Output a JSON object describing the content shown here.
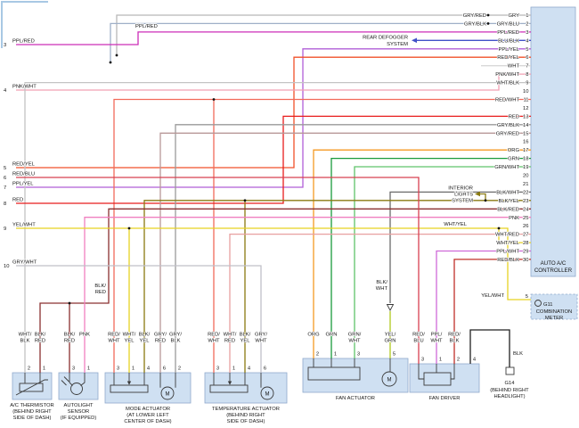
{
  "wire_colors": {
    "gry": "#b8b8b8",
    "gry_blu": "#9fb0c8",
    "ppl_red": "#cc2db8",
    "blu_blk": "#4050c8",
    "ppl_yel": "#b05fd8",
    "red_yel": "#f0502a",
    "wht": "#d8d8d8",
    "pnk_wht": "#f2a0b4",
    "wht_blk": "#c4c4c4",
    "red_wht": "#f26a5a",
    "red": "#e81c1c",
    "gry_blk": "#9a9a9a",
    "gry_red": "#b89898",
    "org": "#f59a23",
    "grn": "#199a3c",
    "grn_wht": "#5fc46a",
    "blk_wht": "#6a6a6a",
    "yel_grn": "#b0c81e",
    "blk_yel": "#8a7a10",
    "blk_red": "#8a3030",
    "pnk": "#f080c0",
    "yel_wht": "#e6d222",
    "wht_red": "#e8a0a0",
    "wht_yel": "#d8c878",
    "ppl_wht": "#cf6ad8",
    "red_blk": "#c03028",
    "red_blu": "#d84050",
    "gry_wht": "#c0c0c8",
    "blk": "#202020"
  },
  "frame_color": "#a8c8e4",
  "top_label": "PPL/RED",
  "controller": {
    "title": [
      "AUTO A/C",
      "CONTROLLER"
    ],
    "pins": [
      {
        "n": "1",
        "pre": "GRY/RED",
        "label": "GRY"
      },
      {
        "n": "2",
        "pre": "GRY/BLK",
        "label": "GRY/BLU"
      },
      {
        "n": "3",
        "label": "PPL/RED"
      },
      {
        "n": "4",
        "label": "BLU/BLK"
      },
      {
        "n": "5",
        "label": "PPL/YEL"
      },
      {
        "n": "6",
        "label": "RED/YEL"
      },
      {
        "n": "7",
        "label": "WHT"
      },
      {
        "n": "8",
        "label": "PNK/WHT"
      },
      {
        "n": "9",
        "label": "WHT/BLK"
      },
      {
        "n": "10",
        "label": ""
      },
      {
        "n": "11",
        "label": "RED/WHT"
      },
      {
        "n": "12",
        "label": ""
      },
      {
        "n": "13",
        "label": "RED"
      },
      {
        "n": "14",
        "label": "GRY/BLK"
      },
      {
        "n": "15",
        "label": "GRY/RED"
      },
      {
        "n": "16",
        "label": ""
      },
      {
        "n": "17",
        "label": "ORG"
      },
      {
        "n": "18",
        "label": "GRN"
      },
      {
        "n": "19",
        "label": "GRN/WHT"
      },
      {
        "n": "20",
        "label": ""
      },
      {
        "n": "21",
        "label": ""
      },
      {
        "n": "22",
        "label": "BLK/WHT"
      },
      {
        "n": "23",
        "label": "BLK/YEL"
      },
      {
        "n": "24",
        "label": "BLK/RED"
      },
      {
        "n": "25",
        "label": "PNK"
      },
      {
        "n": "26",
        "label": ""
      },
      {
        "n": "27",
        "label": "WHT/RED"
      },
      {
        "n": "28",
        "label": "WHT/YEL"
      },
      {
        "n": "29",
        "label": "PPL/WHT"
      },
      {
        "n": "30",
        "label": "RED/BLK"
      }
    ]
  },
  "left_connector": {
    "pins": [
      {
        "n": "3",
        "label": "PPL/RED"
      },
      {
        "n": "4",
        "label": "PNK/WHT"
      },
      {
        "n": "5",
        "label": "RED/YEL"
      },
      {
        "n": "6",
        "label": "RED/BLU"
      },
      {
        "n": "7",
        "label": "PPL/YEL"
      },
      {
        "n": "8",
        "label": "RED"
      },
      {
        "n": "9",
        "label": "YEL/WHT"
      },
      {
        "n": "10",
        "label": "GRY/WHT"
      }
    ]
  },
  "systems": {
    "rear_defogger": [
      "REAR DEFOGGER",
      "SYSTEM"
    ],
    "interior_lights": [
      "INTERIOR",
      "LIGHTS",
      "SYSTEM"
    ]
  },
  "inline_labels": {
    "blk_red": [
      "BLK/",
      "RED"
    ],
    "blk_wht": [
      "BLK/",
      "WHT"
    ],
    "wht_yel": "WHT/YEL",
    "yel_wht": "YEL/WHT"
  },
  "components": {
    "thermistor": {
      "caption": [
        "A/C THERMISTOR",
        "(BEHIND RIGHT",
        "SIDE OF DASH)"
      ],
      "wires": [
        {
          "l1": "WHT/",
          "l2": "BLK",
          "pin": "2"
        },
        {
          "l1": "BLK/",
          "l2": "RED",
          "pin": "1"
        }
      ]
    },
    "autolight": {
      "caption": [
        "AUTOLIGHT",
        "SENSOR",
        "(IF EQUIPPED)"
      ],
      "wires": [
        {
          "l1": "BLK/",
          "l2": "RED",
          "pin": "3"
        },
        {
          "l1": "PNK",
          "l2": "",
          "pin": "1"
        }
      ]
    },
    "mode": {
      "caption": [
        "MODE ACTUATOR",
        "(AT LOWER LEFT",
        "CENTER OF DASH)"
      ],
      "wires": [
        {
          "l1": "RED/",
          "l2": "WHT",
          "pin": "3"
        },
        {
          "l1": "WHT/",
          "l2": "YEL",
          "pin": "1"
        },
        {
          "l1": "BLK/",
          "l2": "YEL",
          "pin": "4"
        },
        {
          "l1": "GRY/",
          "l2": "RED",
          "pin": "6"
        },
        {
          "l1": "GRY/",
          "l2": "BLK",
          "pin": "2"
        }
      ]
    },
    "temp": {
      "caption": [
        "TEMPERATURE ACTUATOR",
        "(BEHIND RIGHT",
        "SIDE OF DASH)"
      ],
      "wires": [
        {
          "l1": "RED/",
          "l2": "WHT",
          "pin": "3"
        },
        {
          "l1": "WHT/",
          "l2": "RED",
          "pin": "1"
        },
        {
          "l1": "BLK/",
          "l2": "YEL",
          "pin": "4"
        },
        {
          "l1": "GRY/",
          "l2": "WHT",
          "pin": "6"
        }
      ]
    },
    "fan_actuator": {
      "caption": [
        "FAN ACTUATOR"
      ],
      "wires": [
        {
          "l1": "ORG",
          "l2": "",
          "pin": "2"
        },
        {
          "l1": "GRN",
          "l2": "",
          "pin": "1"
        },
        {
          "l1": "GRN/",
          "l2": "WHT",
          "pin": "3"
        },
        {
          "l1": "YEL/",
          "l2": "GRN",
          "pin": "5"
        }
      ]
    },
    "fan_driver": {
      "caption": [
        "FAN DRIVER"
      ],
      "wires": [
        {
          "l1": "RED/",
          "l2": "BLU",
          "pin": "3"
        },
        {
          "l1": "PPL/",
          "l2": "WHT",
          "pin": "1"
        },
        {
          "l1": "RED/",
          "l2": "BLK",
          "pin": "2"
        },
        {
          "l1": "",
          "l2": "",
          "pin": "4"
        }
      ]
    }
  },
  "combination_meter": {
    "pin": "5",
    "g": "G11",
    "caption": [
      "COMBINATION",
      "METER"
    ]
  },
  "ground": {
    "label": "BLK",
    "name": "G14",
    "caption": [
      "(BEHIND RIGHT",
      "HEADLIGHT)"
    ]
  }
}
